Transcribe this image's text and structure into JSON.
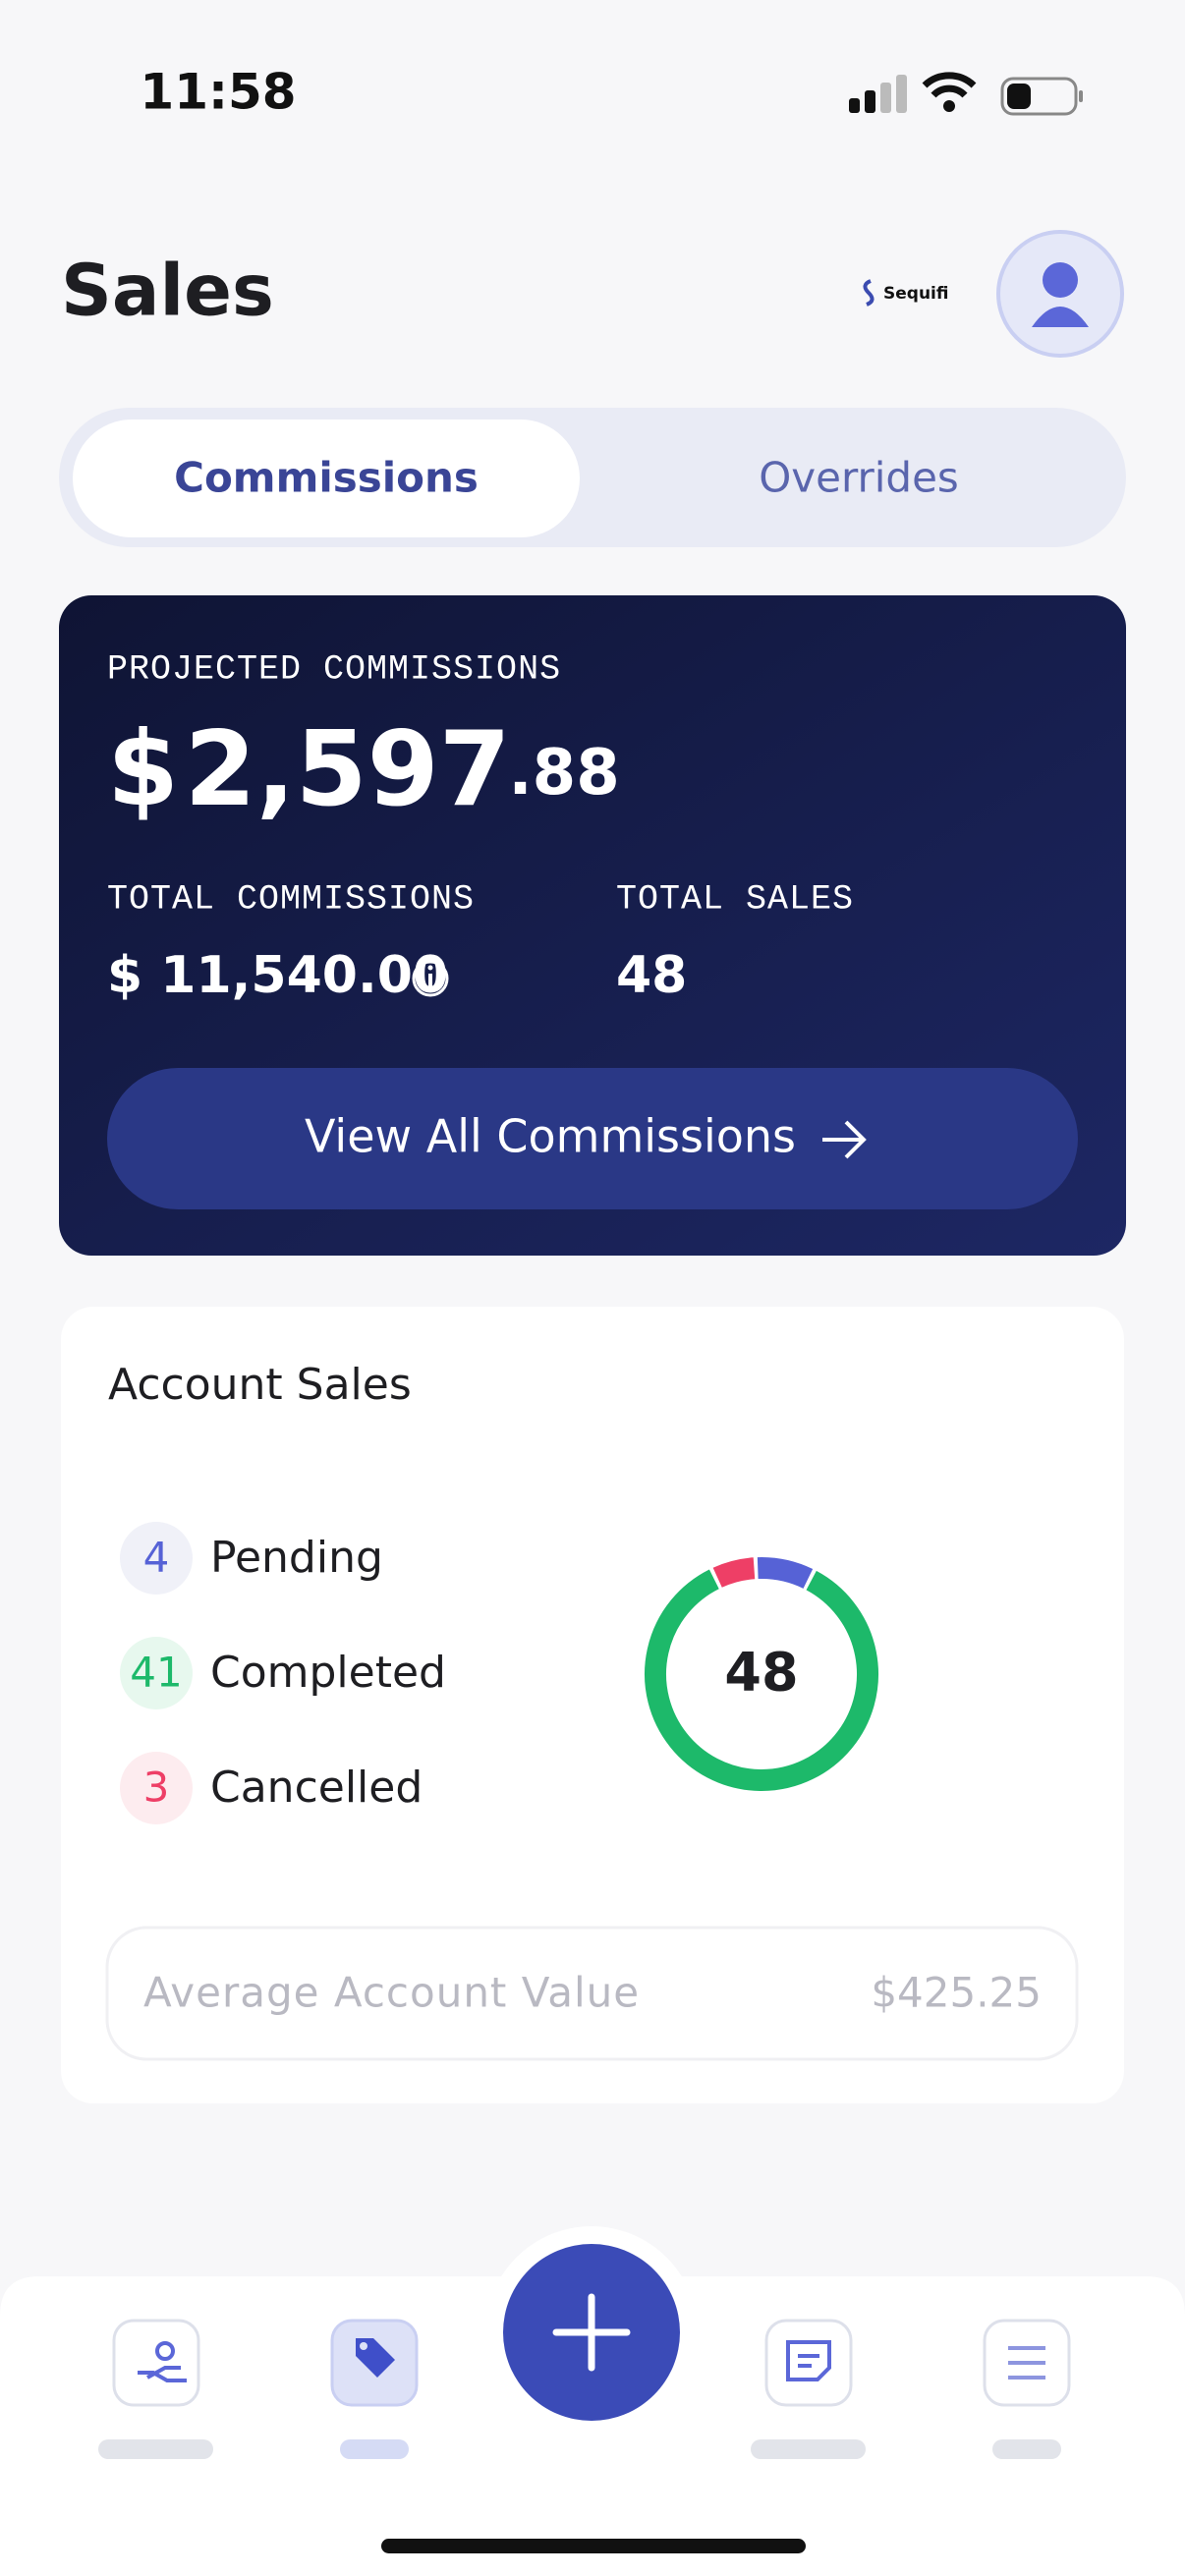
{
  "status_bar": {
    "time": "11:58"
  },
  "header": {
    "title": "Sales",
    "brand": "Sequifi"
  },
  "tabs": [
    "Commissions",
    "Overrides"
  ],
  "active_tab": 0,
  "summary": {
    "label": "PROJECTED COMMISSIONS",
    "currency": "$",
    "amount_whole": "2,597",
    "amount_cents": ".88",
    "total_commissions_label": "TOTAL COMMISSIONS",
    "total_commissions": "$ 11,540.00",
    "total_sales_label": "TOTAL SALES",
    "total_sales": "48",
    "button": "View All Commissions"
  },
  "account_sales": {
    "title": "Account Sales",
    "items": [
      {
        "count": 4,
        "label": "Pending",
        "color": "#5662d6",
        "bg": "#f0f1f8"
      },
      {
        "count": 41,
        "label": "Completed",
        "color": "#1db96a",
        "bg": "#e7f8ee"
      },
      {
        "count": 3,
        "label": "Cancelled",
        "color": "#ee3f66",
        "bg": "#fdecef"
      }
    ],
    "total": 48,
    "average_label": "Average Account Value",
    "average_value": "$425.25"
  }
}
